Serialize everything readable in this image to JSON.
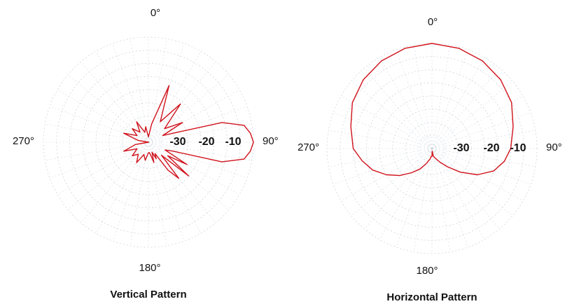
{
  "chart_data": [
    {
      "type": "polar",
      "title": "Vertical Pattern",
      "angle_unit": "degrees",
      "angle_zero": "top",
      "angle_direction": "clockwise",
      "angle_labels": [
        "0°",
        "90°",
        "180°",
        "270°"
      ],
      "radial_unit": "dB",
      "radial_range": [
        -40,
        0
      ],
      "radial_labels": [
        "-30",
        "-20",
        "-10"
      ],
      "grid": true,
      "series_color": "#d0121b",
      "series": [
        {
          "angles": [
            0,
            10,
            20,
            30,
            40,
            50,
            60,
            65,
            70,
            75,
            80,
            85,
            90,
            95,
            100,
            105,
            110,
            115,
            120,
            125,
            130,
            135,
            140,
            145,
            150,
            155,
            160,
            165,
            170,
            175,
            180,
            190,
            200,
            210,
            220,
            230,
            240,
            250,
            260,
            270,
            280,
            290,
            300,
            310,
            320,
            330,
            340,
            350
          ],
          "values": [
            -38,
            -33,
            -17,
            -31,
            -21,
            -32,
            -25,
            -34,
            -30,
            -11,
            -3,
            -1,
            0,
            -1,
            -3,
            -11,
            -30,
            -33,
            -23,
            -31,
            -20,
            -33,
            -22,
            -27,
            -35,
            -33,
            -36,
            -32,
            -35,
            -36,
            -36,
            -33,
            -35,
            -31,
            -34,
            -32,
            -35,
            -30,
            -35,
            -40,
            -36,
            -30,
            -35,
            -32,
            -35,
            -31,
            -36,
            -34
          ]
        }
      ]
    },
    {
      "type": "polar",
      "title": "Horizontal Pattern",
      "angle_unit": "degrees",
      "angle_zero": "top",
      "angle_direction": "clockwise",
      "angle_labels": [
        "0°",
        "90°",
        "180°",
        "270°"
      ],
      "radial_unit": "dB",
      "radial_range": [
        -40,
        0
      ],
      "radial_labels": [
        "-30",
        "-20",
        "-10"
      ],
      "grid": true,
      "series_color": "#d0121b",
      "series": [
        {
          "angles": [
            0,
            15,
            30,
            45,
            60,
            75,
            90,
            100,
            110,
            120,
            130,
            140,
            150,
            160,
            170,
            175,
            180,
            185,
            190,
            200,
            210,
            220,
            230,
            240,
            250,
            260,
            270,
            285,
            300,
            315,
            330,
            345
          ],
          "values": [
            0,
            -0.5,
            -1.5,
            -3,
            -5,
            -8,
            -10,
            -12,
            -15,
            -20,
            -26,
            -31,
            -34,
            -36,
            -37,
            -39,
            -37,
            -37,
            -36,
            -34,
            -31,
            -28,
            -24,
            -20,
            -16,
            -13,
            -10,
            -8,
            -5,
            -3,
            -1.5,
            -0.5
          ]
        }
      ]
    }
  ]
}
